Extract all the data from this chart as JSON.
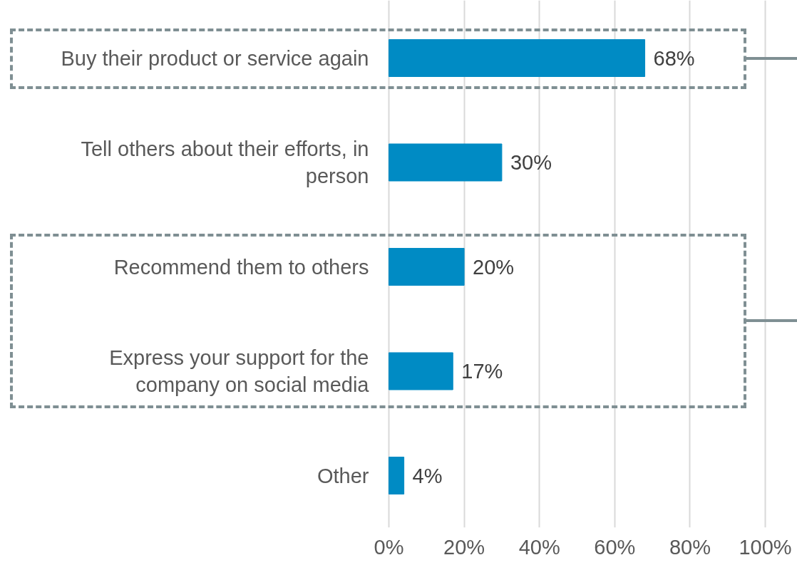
{
  "chart_data": {
    "type": "bar",
    "orientation": "horizontal",
    "categories": [
      "Buy their product or service again",
      "Tell others about their efforts, in person",
      "Recommend them to others",
      "Express your support for the company on social media",
      "Other"
    ],
    "values": [
      68,
      30,
      20,
      17,
      4
    ],
    "value_labels": [
      "68%",
      "30%",
      "20%",
      "17%",
      "4%"
    ],
    "color": "#008bc4",
    "xlim": [
      0,
      100
    ],
    "xticks": [
      {
        "value": 0,
        "label": "0%"
      },
      {
        "value": 20,
        "label": "20%"
      },
      {
        "value": 40,
        "label": "40%"
      },
      {
        "value": 60,
        "label": "60%"
      },
      {
        "value": 80,
        "label": "80%"
      },
      {
        "value": 100,
        "label": "100%"
      }
    ],
    "grid": "x"
  }
}
